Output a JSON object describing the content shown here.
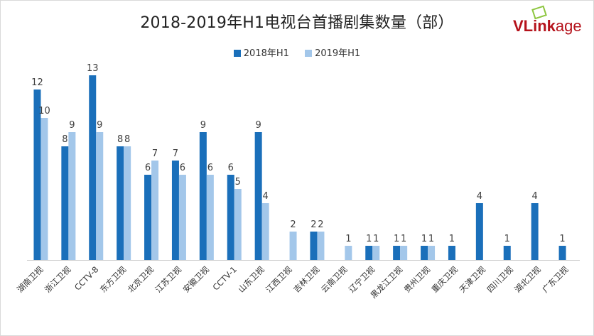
{
  "chart_data": {
    "type": "bar",
    "title": "2018-2019年H1电视台首播剧集数量（部）",
    "categories": [
      "湖南卫视",
      "浙江卫视",
      "CCTV-8",
      "东方卫视",
      "北京卫视",
      "江苏卫视",
      "安徽卫视",
      "CCTV-1",
      "山东卫视",
      "江西卫视",
      "吉林卫视",
      "云南卫视",
      "辽宁卫视",
      "黑龙江卫视",
      "贵州卫视",
      "重庆卫视",
      "天津卫视",
      "四川卫视",
      "湖北卫视",
      "广东卫视"
    ],
    "series": [
      {
        "name": "2018年H1",
        "color": "#1a6fba",
        "values": [
          12,
          8,
          13,
          8,
          6,
          7,
          9,
          6,
          9,
          null,
          2,
          null,
          1,
          1,
          1,
          1,
          4,
          1,
          4,
          1
        ]
      },
      {
        "name": "2019年H1",
        "color": "#a3c7ea",
        "values": [
          10,
          9,
          9,
          8,
          7,
          6,
          6,
          5,
          4,
          2,
          2,
          1,
          1,
          1,
          1,
          null,
          null,
          null,
          null,
          null
        ]
      }
    ],
    "ylim": [
      0,
      14
    ],
    "grid": false,
    "legend_position": "top-center"
  },
  "logo": {
    "brand_bold": "VLink",
    "brand_rest": "age"
  }
}
